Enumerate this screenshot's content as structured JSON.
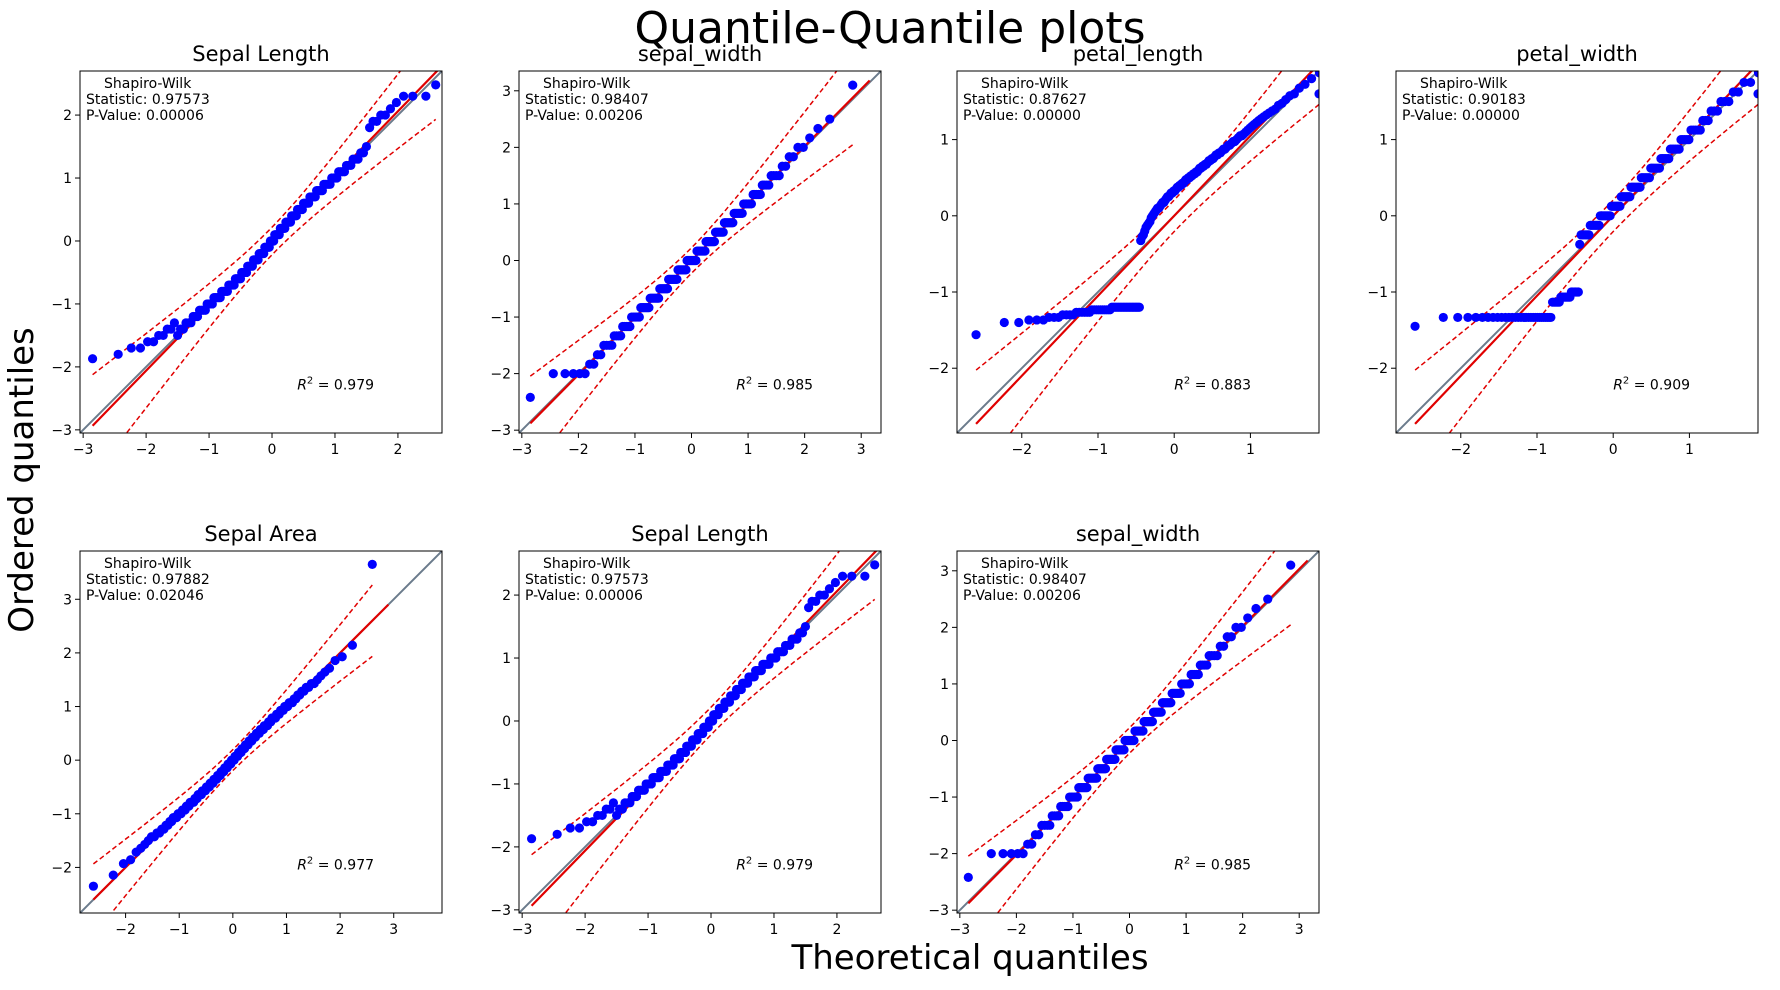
{
  "figure": {
    "title": "Quantile-Quantile plots",
    "xlabel": "Theoretical quantiles",
    "ylabel": "Ordered quantiles"
  },
  "colors": {
    "points": "#0000ff",
    "fit_line": "#e00000",
    "band": "#e00000",
    "reference": "#6b7b8c"
  },
  "chart_data": [
    {
      "type": "scatter",
      "title": "Sepal Length",
      "xlim": [
        -3.05,
        2.7
      ],
      "ylim": [
        -3.05,
        2.7
      ],
      "xticks": [
        -3,
        -2,
        -1,
        0,
        1,
        2
      ],
      "yticks": [
        -3,
        -2,
        -1,
        0,
        1,
        2
      ],
      "test": "Shapiro-Wilk",
      "statistic": "0.97573",
      "p_value": "0.00006",
      "r2": "0.979",
      "slope": 1.03,
      "intercept": 0.0,
      "band": 0.37,
      "shape": "light",
      "min_point": [
        -2.85,
        -1.87
      ],
      "max_point": [
        2.6,
        2.48
      ]
    },
    {
      "type": "scatter",
      "title": "sepal_width",
      "xlim": [
        -3.05,
        3.35
      ],
      "ylim": [
        -3.05,
        3.35
      ],
      "xticks": [
        -3,
        -2,
        -1,
        0,
        1,
        2,
        3
      ],
      "yticks": [
        -3,
        -2,
        -1,
        0,
        1,
        2,
        3
      ],
      "test": "Shapiro-Wilk",
      "statistic": "0.98407",
      "p_value": "0.00206",
      "r2": "0.985",
      "slope": 1.01,
      "intercept": 0.0,
      "band": 0.38,
      "shape": "steps",
      "min_point": [
        -2.85,
        -2.42
      ],
      "max_point": [
        2.85,
        3.1
      ]
    },
    {
      "type": "scatter",
      "title": "petal_length",
      "xlim": [
        -2.85,
        1.9
      ],
      "ylim": [
        -2.85,
        1.9
      ],
      "xticks": [
        -2,
        -1,
        0,
        1
      ],
      "yticks": [
        -2,
        -1,
        0,
        1
      ],
      "test": "Shapiro-Wilk",
      "statistic": "0.87627",
      "p_value": "0.00000",
      "r2": "0.883",
      "slope": 1.05,
      "intercept": 0.0,
      "band": 0.35,
      "shape": "bimodal",
      "min_point": [
        -2.6,
        -1.56
      ],
      "max_point": [
        1.9,
        1.6
      ]
    },
    {
      "type": "scatter",
      "title": "petal_width",
      "xlim": [
        -2.85,
        1.9
      ],
      "ylim": [
        -2.85,
        1.9
      ],
      "xticks": [
        -2,
        -1,
        0,
        1
      ],
      "yticks": [
        -2,
        -1,
        0,
        1
      ],
      "test": "Shapiro-Wilk",
      "statistic": "0.90183",
      "p_value": "0.00000",
      "r2": "0.909",
      "slope": 1.05,
      "intercept": 0.0,
      "band": 0.35,
      "shape": "bimodal2",
      "min_point": [
        -2.6,
        -1.45
      ],
      "max_point": [
        1.9,
        1.6
      ]
    },
    {
      "type": "scatter",
      "title": "Sepal Area",
      "xlim": [
        -2.85,
        3.9
      ],
      "ylim": [
        -2.85,
        3.9
      ],
      "xticks": [
        -2,
        -1,
        0,
        1,
        2,
        3
      ],
      "yticks": [
        -2,
        -1,
        0,
        1,
        2,
        3
      ],
      "test": "Shapiro-Wilk",
      "statistic": "0.97882",
      "p_value": "0.02046",
      "r2": "0.977",
      "slope": 1.0,
      "intercept": 0.0,
      "band": 0.33,
      "shape": "area",
      "min_point": [
        -2.6,
        -2.35
      ],
      "max_point": [
        2.6,
        3.65
      ]
    },
    {
      "type": "scatter",
      "title": "Sepal Length",
      "xlim": [
        -3.05,
        2.7
      ],
      "ylim": [
        -3.05,
        2.7
      ],
      "xticks": [
        -3,
        -2,
        -1,
        0,
        1,
        2
      ],
      "yticks": [
        -3,
        -2,
        -1,
        0,
        1,
        2
      ],
      "test": "Shapiro-Wilk",
      "statistic": "0.97573",
      "p_value": "0.00006",
      "r2": "0.979",
      "slope": 1.03,
      "intercept": 0.0,
      "band": 0.37,
      "shape": "light",
      "min_point": [
        -2.85,
        -1.87
      ],
      "max_point": [
        2.6,
        2.48
      ]
    },
    {
      "type": "scatter",
      "title": "sepal_width",
      "xlim": [
        -3.05,
        3.35
      ],
      "ylim": [
        -3.05,
        3.35
      ],
      "xticks": [
        -3,
        -2,
        -1,
        0,
        1,
        2,
        3
      ],
      "yticks": [
        -3,
        -2,
        -1,
        0,
        1,
        2,
        3
      ],
      "test": "Shapiro-Wilk",
      "statistic": "0.98407",
      "p_value": "0.00206",
      "r2": "0.985",
      "slope": 1.01,
      "intercept": 0.0,
      "band": 0.38,
      "shape": "steps",
      "min_point": [
        -2.85,
        -2.42
      ],
      "max_point": [
        2.85,
        3.1
      ]
    }
  ]
}
